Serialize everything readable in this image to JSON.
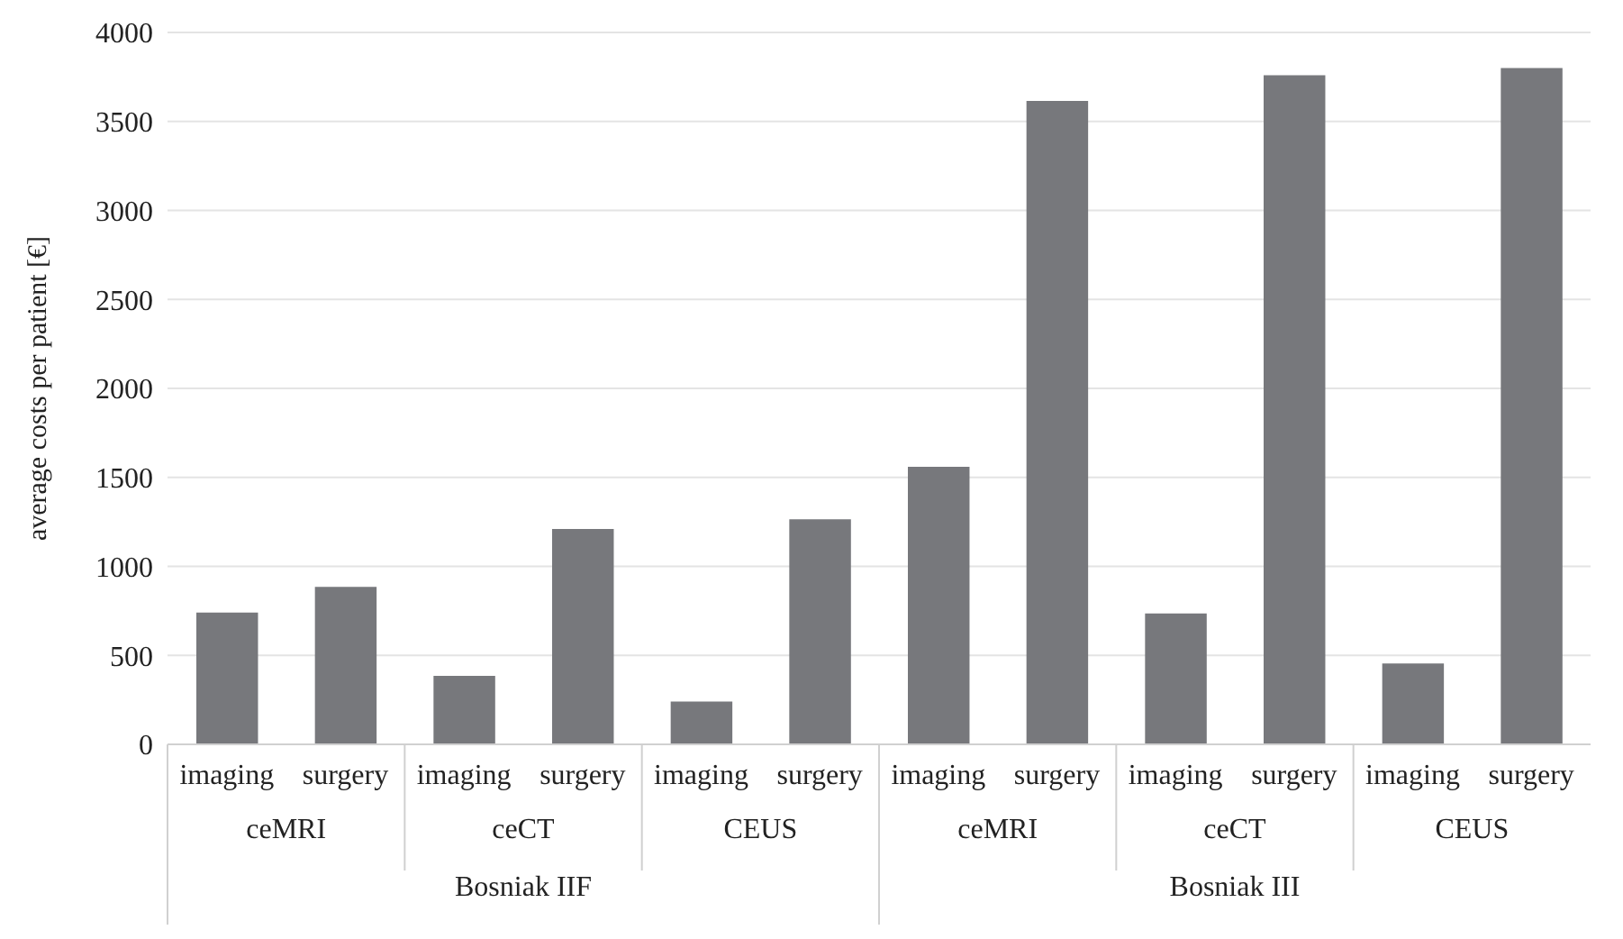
{
  "chart_data": {
    "type": "bar",
    "ylabel": "average costs per patient [€]",
    "categories": [
      "imaging",
      "surgery",
      "imaging",
      "surgery",
      "imaging",
      "surgery",
      "imaging",
      "surgery",
      "imaging",
      "surgery",
      "imaging",
      "surgery"
    ],
    "values": [
      740,
      885,
      385,
      1210,
      240,
      1265,
      1560,
      3615,
      735,
      3760,
      455,
      3800
    ],
    "color": "#77787c",
    "ylim": [
      0,
      4000
    ],
    "yticks": [
      0,
      500,
      1000,
      1500,
      2000,
      2500,
      3000,
      3500,
      4000
    ],
    "grid": "y",
    "annotations": [
      "ceMRI",
      "ceCT",
      "CEUS",
      "ceMRI",
      "ceCT",
      "CEUS",
      "Bosniak IIF",
      "Bosniak III"
    ]
  }
}
